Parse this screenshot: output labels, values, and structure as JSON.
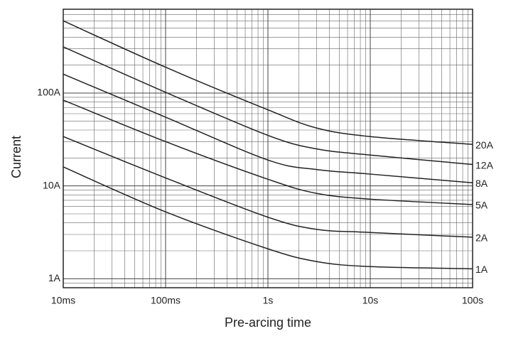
{
  "chart_data": {
    "type": "line",
    "x_label": "Pre-arcing time",
    "y_label": "Current",
    "x": [
      0.01,
      0.1,
      1,
      3,
      10,
      100
    ],
    "series": [
      {
        "name": "20A",
        "color": "#222222",
        "values": [
          600,
          190,
          66,
          42,
          34,
          28
        ]
      },
      {
        "name": "12A",
        "color": "#222222",
        "values": [
          315,
          102,
          35,
          25,
          21.5,
          17
        ]
      },
      {
        "name": "8A",
        "color": "#222222",
        "values": [
          160,
          55,
          19,
          15,
          13.4,
          10.8
        ]
      },
      {
        "name": "5A",
        "color": "#222222",
        "values": [
          84,
          30,
          11.8,
          8.3,
          7.2,
          6.3
        ]
      },
      {
        "name": "2A",
        "color": "#222222",
        "values": [
          34,
          12.2,
          4.6,
          3.4,
          3.15,
          2.8
        ]
      },
      {
        "name": "1A",
        "color": "#222222",
        "values": [
          16,
          5.25,
          2.1,
          1.53,
          1.35,
          1.28
        ]
      }
    ],
    "xlim": [
      0.01,
      100
    ],
    "ylim": [
      0.8,
      800
    ],
    "xticks": [
      {
        "value": 0.01,
        "label": "10ms"
      },
      {
        "value": 0.1,
        "label": "100ms"
      },
      {
        "value": 1,
        "label": "1s"
      },
      {
        "value": 10,
        "label": "10s"
      },
      {
        "value": 100,
        "label": "100s"
      }
    ],
    "yticks": [
      {
        "value": 1,
        "label": "1A"
      },
      {
        "value": 10,
        "label": "10A"
      },
      {
        "value": 100,
        "label": "100A"
      }
    ],
    "x_log": true,
    "y_log": true,
    "grid": true,
    "minor_grid": true
  }
}
